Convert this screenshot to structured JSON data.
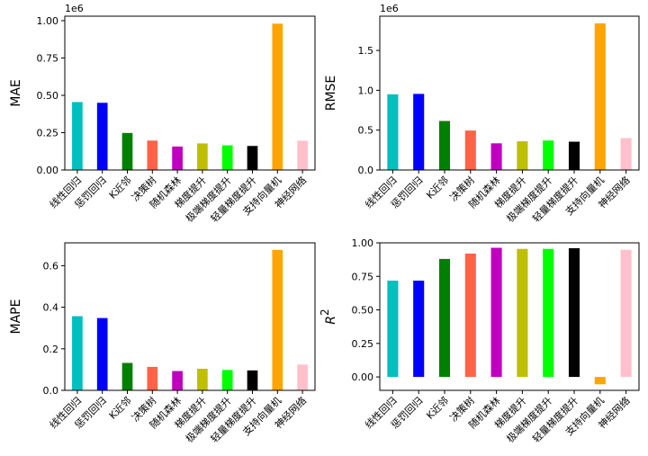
{
  "chart_data": [
    {
      "type": "bar",
      "panel": "top-left",
      "categories": [
        "线性回归",
        "惩罚回归",
        "K近邻",
        "决策树",
        "随机森林",
        "梯度提升",
        "极端梯度提升",
        "轻量梯度提升",
        "支持向量机",
        "神经网络"
      ],
      "values": [
        455000,
        450000,
        248000,
        197000,
        157000,
        178000,
        165000,
        161000,
        980000,
        196000
      ],
      "colors": [
        "#00bfbf",
        "#0000ff",
        "#008000",
        "#ff6347",
        "#bf00bf",
        "#bfbf00",
        "#00ff00",
        "#000000",
        "#ffa500",
        "#ffc0cb"
      ],
      "title": "",
      "xlabel": "",
      "ylabel": "MAE",
      "offset_text": "1e6",
      "ylim": [
        0,
        1030000
      ],
      "yticks": [
        0,
        250000,
        500000,
        750000,
        1000000
      ],
      "ytick_labels": [
        "0.00",
        "0.25",
        "0.50",
        "0.75",
        "1.00"
      ],
      "grid": false
    },
    {
      "type": "bar",
      "panel": "top-right",
      "categories": [
        "线性回归",
        "惩罚回归",
        "K近邻",
        "决策树",
        "随机森林",
        "梯度提升",
        "极端梯度提升",
        "轻量梯度提升",
        "支持向量机",
        "神经网络"
      ],
      "values": [
        950000,
        955000,
        615000,
        495000,
        335000,
        360000,
        370000,
        355000,
        1840000,
        400000
      ],
      "colors": [
        "#00bfbf",
        "#0000ff",
        "#008000",
        "#ff6347",
        "#bf00bf",
        "#bfbf00",
        "#00ff00",
        "#000000",
        "#ffa500",
        "#ffc0cb"
      ],
      "title": "",
      "xlabel": "",
      "ylabel": "RMSE",
      "offset_text": "1e6",
      "ylim": [
        0,
        1930000
      ],
      "yticks": [
        0,
        500000,
        1000000,
        1500000
      ],
      "ytick_labels": [
        "0.0",
        "0.5",
        "1.0",
        "1.5"
      ],
      "grid": false
    },
    {
      "type": "bar",
      "panel": "bottom-left",
      "categories": [
        "线性回归",
        "惩罚回归",
        "K近邻",
        "决策树",
        "随机森林",
        "梯度提升",
        "极端梯度提升",
        "轻量梯度提升",
        "支持向量机",
        "神经网络"
      ],
      "values": [
        0.357,
        0.348,
        0.132,
        0.113,
        0.093,
        0.104,
        0.098,
        0.096,
        0.676,
        0.124
      ],
      "colors": [
        "#00bfbf",
        "#0000ff",
        "#008000",
        "#ff6347",
        "#bf00bf",
        "#bfbf00",
        "#00ff00",
        "#000000",
        "#ffa500",
        "#ffc0cb"
      ],
      "title": "",
      "xlabel": "",
      "ylabel": "MAPE",
      "ylim": [
        0,
        0.71
      ],
      "yticks": [
        0,
        0.2,
        0.4,
        0.6
      ],
      "ytick_labels": [
        "0.0",
        "0.2",
        "0.4",
        "0.6"
      ],
      "grid": false
    },
    {
      "type": "bar",
      "panel": "bottom-right",
      "categories": [
        "线性回归",
        "惩罚回归",
        "K近邻",
        "决策树",
        "随机森林",
        "梯度提升",
        "极端梯度提升",
        "轻量梯度提升",
        "支持向量机",
        "神经网络"
      ],
      "values": [
        0.718,
        0.718,
        0.88,
        0.92,
        0.963,
        0.955,
        0.955,
        0.96,
        -0.055,
        0.948
      ],
      "colors": [
        "#00bfbf",
        "#0000ff",
        "#008000",
        "#ff6347",
        "#bf00bf",
        "#bfbf00",
        "#00ff00",
        "#000000",
        "#ffa500",
        "#ffc0cb"
      ],
      "title": "",
      "xlabel": "",
      "ylabel": "R",
      "ylabel_superscript": "2",
      "ylim": [
        -0.1,
        1.0
      ],
      "yticks": [
        0,
        0.25,
        0.5,
        0.75,
        1.0
      ],
      "ytick_labels": [
        "0.00",
        "0.25",
        "0.50",
        "0.75",
        "1.00"
      ],
      "grid": false
    }
  ]
}
